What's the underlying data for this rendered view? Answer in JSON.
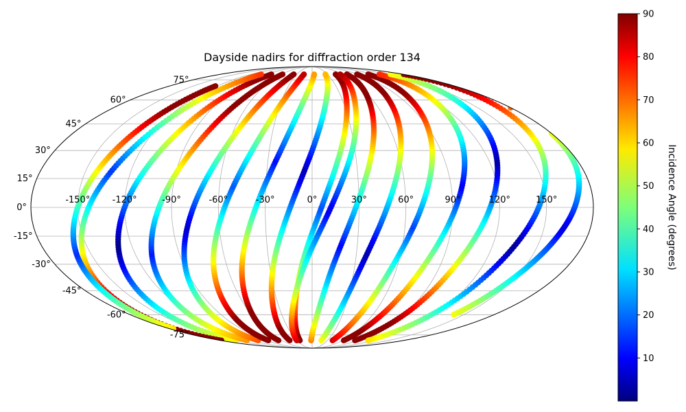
{
  "chart_data": {
    "type": "scatter",
    "projection": "mollweide",
    "title": "Dayside nadirs for diffraction order 134",
    "grid": true,
    "xlim": [
      -180,
      180
    ],
    "ylim": [
      -90,
      90
    ],
    "xticks": [
      -150,
      -120,
      -90,
      -60,
      -30,
      0,
      30,
      60,
      90,
      120,
      150
    ],
    "xtick_labels": [
      "-150°",
      "-120°",
      "-90°",
      "-60°",
      "-30°",
      "0°",
      "30°",
      "60°",
      "90°",
      "120°",
      "150°"
    ],
    "yticks": [
      -75,
      -60,
      -45,
      -30,
      -15,
      0,
      15,
      30,
      45,
      60,
      75
    ],
    "ytick_labels": [
      "-75°",
      "-60°",
      "-45°",
      "-30°",
      "-15°",
      "0°",
      "15°",
      "30°",
      "45°",
      "60°",
      "75°"
    ],
    "colorbar": {
      "label": "Incidence Angle (degrees)",
      "range": [
        0,
        90
      ],
      "ticks": [
        10,
        20,
        30,
        40,
        50,
        60,
        70,
        80,
        90
      ],
      "tick_labels": [
        "10",
        "20",
        "30",
        "40",
        "50",
        "60",
        "70",
        "80",
        "90"
      ],
      "colormap": "jet",
      "placement": "right"
    },
    "series": [
      {
        "lon": [
          -150,
          -143,
          -133,
          -120,
          -106,
          -92,
          -80
        ],
        "lat": [
          -80,
          -60,
          -30,
          0,
          30,
          60,
          80
        ]
      },
      {
        "lon": [
          -128,
          -121,
          -111,
          -98,
          -84,
          -70,
          -58
        ],
        "lat": [
          -80,
          -60,
          -30,
          0,
          30,
          60,
          80
        ]
      },
      {
        "lon": [
          -106,
          -99,
          -89,
          -76,
          -62,
          -48,
          -36
        ],
        "lat": [
          -80,
          -60,
          -30,
          0,
          30,
          60,
          80
        ]
      },
      {
        "lon": [
          -86,
          -79,
          -69,
          -56,
          -42,
          -28,
          -16
        ],
        "lat": [
          -80,
          -60,
          -30,
          0,
          30,
          60,
          80
        ]
      },
      {
        "lon": [
          -66,
          -59,
          -49,
          -36,
          -22,
          -8,
          4
        ],
        "lat": [
          -80,
          -60,
          -30,
          0,
          30,
          60,
          80
        ]
      },
      {
        "lon": [
          -44,
          -37,
          -27,
          -14,
          0,
          14,
          26
        ],
        "lat": [
          -80,
          -60,
          -30,
          0,
          30,
          60,
          80
        ]
      },
      {
        "lon": [
          -24,
          -17,
          -7,
          6,
          20,
          34,
          46
        ],
        "lat": [
          -80,
          -60,
          -30,
          0,
          30,
          60,
          80
        ]
      },
      {
        "lon": [
          -2,
          5,
          15,
          28,
          42,
          56,
          68
        ],
        "lat": [
          -80,
          -60,
          -30,
          0,
          30,
          60,
          80
        ]
      },
      {
        "lon": [
          18,
          25,
          35,
          48,
          62,
          76,
          88
        ],
        "lat": [
          -80,
          -60,
          -30,
          0,
          30,
          60,
          80
        ]
      },
      {
        "lon": [
          40,
          47,
          57,
          70,
          84,
          98,
          110
        ],
        "lat": [
          -80,
          -60,
          -30,
          0,
          30,
          60,
          80
        ]
      },
      {
        "lon": [
          62,
          69,
          79,
          92,
          106,
          120,
          132
        ],
        "lat": [
          -80,
          -60,
          -30,
          0,
          30,
          60,
          80
        ]
      },
      {
        "lon": [
          84,
          91,
          101,
          114,
          128,
          142,
          154
        ],
        "lat": [
          -80,
          -60,
          -30,
          0,
          30,
          60,
          80
        ]
      },
      {
        "lon": [
          -178,
          -170,
          -158,
          -143,
          -127,
          -112,
          -100
        ],
        "lat": [
          -80,
          -60,
          -30,
          0,
          30,
          60,
          80
        ]
      },
      {
        "lon": [
          -30,
          -20,
          -5,
          12,
          28,
          42,
          55
        ],
        "lat": [
          -80,
          -60,
          -30,
          0,
          30,
          60,
          80
        ]
      },
      {
        "lon": [
          110,
          118,
          130,
          145,
          160,
          172,
          180
        ],
        "lat": [
          -80,
          -60,
          -30,
          0,
          30,
          60,
          80
        ]
      },
      {
        "lon": [
          -175,
          -168,
          -160,
          -150,
          -140,
          -130,
          -122
        ],
        "lat": [
          -70,
          -50,
          -25,
          0,
          25,
          50,
          70
        ]
      },
      {
        "lon": [
          140,
          148,
          158,
          168,
          176,
          180,
          180
        ],
        "lat": [
          -60,
          -40,
          -20,
          0,
          20,
          40,
          55
        ]
      }
    ]
  }
}
